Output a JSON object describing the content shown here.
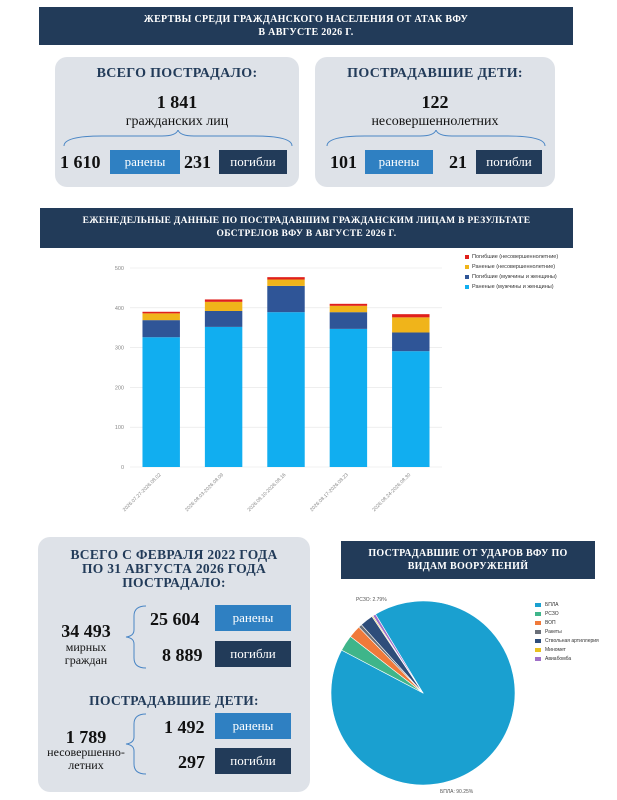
{
  "header": {
    "title_line1": "ЖЕРТВЫ СРЕДИ ГРАЖДАНСКОГО НАСЕЛЕНИЯ ОТ АТАК ВФУ",
    "title_line2": "В АВГУСТЕ 2026 Г."
  },
  "total_panel": {
    "title": "ВСЕГО ПОСТРАДАЛО:",
    "total": "1 841",
    "total_label": "гражданских лиц",
    "wounded": "1 610",
    "wounded_label": "ранены",
    "killed": "231",
    "killed_label": "погибли"
  },
  "children_panel": {
    "title": "ПОСТРАДАВШИЕ ДЕТИ:",
    "total": "122",
    "total_label": "несовершеннолетних",
    "wounded": "101",
    "wounded_label": "ранены",
    "killed": "21",
    "killed_label": "погибли"
  },
  "weekly_banner": {
    "line1": "ЕЖЕНЕДЕЛЬНЫЕ ДАННЫЕ ПО ПОСТРАДАВШИМ ГРАЖДАНСКИМ ЛИЦАМ В РЕЗУЛЬТАТЕ",
    "line2": "ОБСТРЕЛОВ ВФУ В АВГУСТЕ 2026 Г."
  },
  "since_panel": {
    "title_line1": "ВСЕГО С ФЕВРАЛЯ 2022 ГОДА",
    "title_line2": "ПО 31 АВГУСТА 2026 ГОДА",
    "title_line3": "ПОСТРАДАЛО:",
    "total": "34 493",
    "total_label_line1": "мирных",
    "total_label_line2": "граждан",
    "wounded": "25 604",
    "wounded_label": "ранены",
    "killed": "8 889",
    "killed_label": "погибли",
    "children_title": "ПОСТРАДАВШИЕ ДЕТИ:",
    "children_total": "1 789",
    "children_label_line1": "несовершенно-",
    "children_label_line2": "летних",
    "children_wounded": "1 492",
    "children_wounded_label": "ранены",
    "children_killed": "297",
    "children_killed_label": "погибли"
  },
  "weapons_banner": {
    "line1": "ПОСТРАДАВШИЕ ОТ УДАРОВ ВФУ ПО",
    "line2": "ВИДАМ ВООРУЖЕНИЙ"
  },
  "chart_data": [
    {
      "type": "bar",
      "stacked": true,
      "categories": [
        "2026.07.27-2026.08.02",
        "2026.08.03-2026.08.09",
        "2026.08.10-2026.08.16",
        "2026.08.17-2026.08.23",
        "2026.08.24-2026.08.30"
      ],
      "ylim": [
        0,
        500
      ],
      "yticks": [
        0,
        100,
        200,
        300,
        400,
        500
      ],
      "grid": true,
      "legend_position": "top-right",
      "series": [
        {
          "name": "Раненые (мужчины и женщины)",
          "color": "#11aef0",
          "values": [
            326,
            352,
            389,
            347,
            291
          ]
        },
        {
          "name": "Погибшие (мужчины и женщины)",
          "color": "#2f5597",
          "values": [
            43,
            40,
            66,
            42,
            47
          ]
        },
        {
          "name": "Раненые (несовершеннолетние)",
          "color": "#f0b41a",
          "values": [
            17,
            23,
            16,
            16,
            38
          ]
        },
        {
          "name": "Погибшие (несовершеннолетние)",
          "color": "#e0201b",
          "values": [
            4,
            6,
            6,
            5,
            8
          ]
        }
      ],
      "legend_order": [
        3,
        2,
        1,
        0
      ]
    },
    {
      "type": "pie",
      "slices": [
        {
          "label": "БПЛА",
          "value": 90.25,
          "color": "#1aa0d0"
        },
        {
          "label": "РСЗО",
          "value": 2.79,
          "color": "#3fb58a"
        },
        {
          "label": "ВОП",
          "value": 2.15,
          "color": "#f07a3a"
        },
        {
          "label": "Ракеты",
          "value": 0.6,
          "color": "#6a6f78"
        },
        {
          "label": "Ствольная артиллерия",
          "value": 2.3,
          "color": "#2e4d7a"
        },
        {
          "label": "Миномет",
          "value": 0.2,
          "color": "#e8c020"
        },
        {
          "label": "Авиабомба",
          "value": 0.5,
          "color": "#a070c8"
        }
      ],
      "slice_labels": [
        "БПЛА: 90.25%",
        "РСЗО: 2.79%"
      ],
      "legend_position": "right"
    }
  ]
}
